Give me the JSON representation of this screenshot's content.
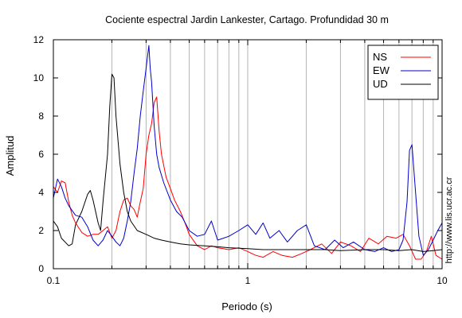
{
  "chart_data": {
    "type": "line",
    "title": "Cociente espectral Jardin Lankester, Cartago. Profundidad 30 m",
    "xlabel": "Periodo (s)",
    "ylabel": "Amplitud",
    "xscale": "log",
    "xlim": [
      0.1,
      10
    ],
    "ylim": [
      0,
      12
    ],
    "grid": "vertical lines at x ticks",
    "x_ticks": [
      0.1,
      1,
      10
    ],
    "x_tick_labels": [
      "0.1",
      "1",
      "10"
    ],
    "y_ticks": [
      0,
      2,
      4,
      6,
      8,
      10,
      12
    ],
    "y_tick_labels": [
      "0",
      "2",
      "4",
      "6",
      "8",
      "10",
      "12"
    ],
    "watermark": "http://www.lis.ucr.ac.cr",
    "legend": {
      "position": "top-right",
      "entries": [
        "NS",
        "EW",
        "UD"
      ]
    },
    "series": [
      {
        "name": "NS",
        "color": "#ff0000",
        "x": [
          0.1,
          0.105,
          0.11,
          0.115,
          0.12,
          0.125,
          0.13,
          0.14,
          0.15,
          0.16,
          0.17,
          0.18,
          0.19,
          0.2,
          0.21,
          0.22,
          0.23,
          0.24,
          0.25,
          0.26,
          0.27,
          0.28,
          0.29,
          0.3,
          0.31,
          0.32,
          0.33,
          0.34,
          0.35,
          0.36,
          0.38,
          0.4,
          0.42,
          0.45,
          0.48,
          0.5,
          0.55,
          0.6,
          0.65,
          0.7,
          0.8,
          0.9,
          1.0,
          1.1,
          1.2,
          1.35,
          1.5,
          1.7,
          1.9,
          2.1,
          2.4,
          2.7,
          3.0,
          3.4,
          3.8,
          4.2,
          4.7,
          5.2,
          5.8,
          6.3,
          6.8,
          7.3,
          7.8,
          8.3,
          8.8,
          9.3,
          10.0
        ],
        "values": [
          4.3,
          4.0,
          4.6,
          4.5,
          3.5,
          2.8,
          2.4,
          1.9,
          1.7,
          1.8,
          1.8,
          2.0,
          2.2,
          1.6,
          2.0,
          3.0,
          3.6,
          3.7,
          3.3,
          3.1,
          2.7,
          3.5,
          4.2,
          6.0,
          7.0,
          7.6,
          8.7,
          9.0,
          7.2,
          6.0,
          4.8,
          4.2,
          3.6,
          3.0,
          2.3,
          1.8,
          1.2,
          1.0,
          1.2,
          1.1,
          1.0,
          1.1,
          0.9,
          0.7,
          0.6,
          0.9,
          0.7,
          0.6,
          0.8,
          1.0,
          1.3,
          0.8,
          1.4,
          1.2,
          0.9,
          1.6,
          1.3,
          1.7,
          1.6,
          1.8,
          1.2,
          0.5,
          0.5,
          0.9,
          1.7,
          0.7,
          0.5
        ]
      },
      {
        "name": "EW",
        "color": "#0000cc",
        "x": [
          0.1,
          0.105,
          0.11,
          0.115,
          0.12,
          0.13,
          0.14,
          0.15,
          0.16,
          0.17,
          0.18,
          0.19,
          0.2,
          0.21,
          0.22,
          0.23,
          0.24,
          0.25,
          0.26,
          0.27,
          0.28,
          0.29,
          0.3,
          0.31,
          0.315,
          0.32,
          0.33,
          0.34,
          0.35,
          0.37,
          0.4,
          0.43,
          0.46,
          0.5,
          0.55,
          0.6,
          0.65,
          0.7,
          0.75,
          0.8,
          0.9,
          1.0,
          1.1,
          1.2,
          1.3,
          1.45,
          1.6,
          1.8,
          2.0,
          2.2,
          2.5,
          2.8,
          3.1,
          3.5,
          4.0,
          4.5,
          5.0,
          5.5,
          6.0,
          6.3,
          6.6,
          6.8,
          7.0,
          7.3,
          7.6,
          8.0,
          8.5,
          9.0,
          9.5,
          10.0
        ],
        "values": [
          3.7,
          4.7,
          4.3,
          3.7,
          3.3,
          2.8,
          2.7,
          2.2,
          1.5,
          1.2,
          1.5,
          2.0,
          1.7,
          1.4,
          1.2,
          1.6,
          2.5,
          3.5,
          5.0,
          6.3,
          8.0,
          9.3,
          10.5,
          11.7,
          10.5,
          9.8,
          7.5,
          6.0,
          5.3,
          4.5,
          3.6,
          3.0,
          2.7,
          2.0,
          1.7,
          1.8,
          2.5,
          1.5,
          1.6,
          1.7,
          2.0,
          2.3,
          1.8,
          2.4,
          1.6,
          2.0,
          1.4,
          2.0,
          2.3,
          1.2,
          1.0,
          1.5,
          1.1,
          1.4,
          1.0,
          0.9,
          1.1,
          0.9,
          1.0,
          1.5,
          3.5,
          6.2,
          6.5,
          4.0,
          1.7,
          0.7,
          1.0,
          1.5,
          2.0,
          2.4
        ]
      },
      {
        "name": "UD",
        "color": "#000000",
        "x": [
          0.1,
          0.105,
          0.11,
          0.12,
          0.125,
          0.13,
          0.14,
          0.15,
          0.155,
          0.16,
          0.17,
          0.175,
          0.18,
          0.19,
          0.195,
          0.2,
          0.205,
          0.21,
          0.22,
          0.23,
          0.24,
          0.25,
          0.27,
          0.3,
          0.33,
          0.36,
          0.4,
          0.45,
          0.5,
          0.6,
          0.7,
          0.8,
          1.0,
          1.2,
          1.5,
          2.0,
          2.5,
          3.0,
          4.0,
          5.0,
          6.0,
          7.0,
          8.0,
          9.0,
          10.0
        ],
        "values": [
          2.5,
          2.2,
          1.6,
          1.2,
          1.3,
          2.3,
          3.0,
          3.9,
          4.1,
          3.6,
          2.4,
          2.0,
          3.5,
          6.0,
          8.5,
          10.2,
          10.0,
          8.0,
          5.5,
          4.0,
          3.0,
          2.5,
          2.0,
          1.8,
          1.6,
          1.5,
          1.4,
          1.3,
          1.25,
          1.2,
          1.15,
          1.1,
          1.05,
          1.0,
          1.0,
          1.0,
          1.0,
          0.95,
          1.0,
          1.0,
          0.95,
          1.0,
          0.9,
          0.95,
          1.0
        ]
      }
    ]
  }
}
